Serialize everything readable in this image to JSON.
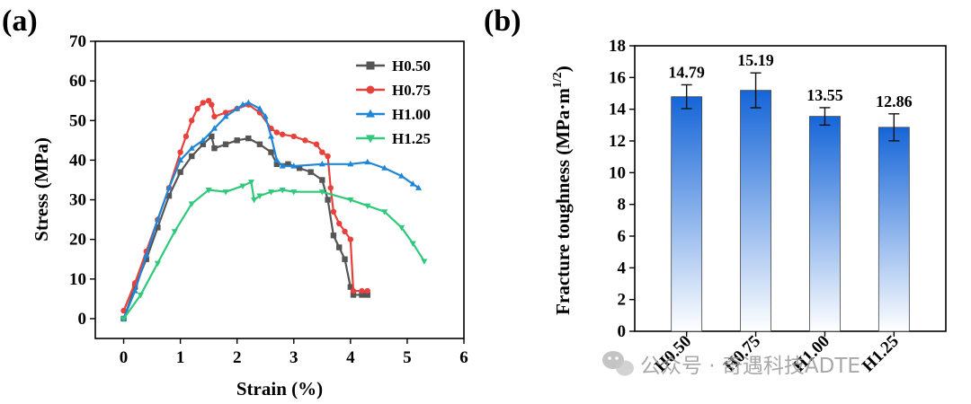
{
  "chart_data": [
    {
      "panel_label": "(a)",
      "type": "line",
      "xlabel": "Strain (%)",
      "ylabel": "Stress (MPa)",
      "xlim": [
        -0.5,
        6
      ],
      "ylim": [
        -5,
        70
      ],
      "xticks": [
        0,
        1,
        2,
        3,
        4,
        5,
        6
      ],
      "yticks": [
        0,
        10,
        20,
        30,
        40,
        50,
        60,
        70
      ],
      "legend_position": "top-right",
      "series": [
        {
          "name": "H0.50",
          "color": "#555555",
          "marker": "square",
          "x": [
            0,
            0.2,
            0.4,
            0.6,
            0.8,
            1.0,
            1.2,
            1.4,
            1.55,
            1.6,
            1.8,
            2.0,
            2.2,
            2.4,
            2.6,
            2.7,
            2.9,
            3.1,
            3.3,
            3.5,
            3.6,
            3.7,
            3.8,
            3.9,
            4.0,
            4.05,
            4.2,
            4.3
          ],
          "y": [
            0,
            8,
            15,
            23,
            31,
            37,
            41,
            44,
            46,
            43,
            44,
            45,
            45.5,
            44,
            42,
            39,
            39,
            38,
            37,
            35,
            30,
            21,
            18,
            15,
            8,
            6,
            6,
            6
          ]
        },
        {
          "name": "H0.75",
          "color": "#e8403a",
          "marker": "circle",
          "x": [
            0,
            0.2,
            0.4,
            0.6,
            0.8,
            1.0,
            1.1,
            1.2,
            1.3,
            1.4,
            1.5,
            1.55,
            1.6,
            1.8,
            2.0,
            2.2,
            2.4,
            2.6,
            2.7,
            2.8,
            3.0,
            3.2,
            3.4,
            3.5,
            3.6,
            3.65,
            3.7,
            3.8,
            3.9,
            4.0,
            4.05,
            4.2,
            4.3
          ],
          "y": [
            2,
            9,
            17,
            25,
            33,
            42,
            46,
            50,
            53,
            54.5,
            55,
            54,
            51,
            52,
            53,
            54,
            52,
            48,
            47,
            46.5,
            46,
            45,
            44,
            42,
            41,
            33,
            27,
            24,
            22,
            20,
            7,
            7,
            7
          ]
        },
        {
          "name": "H1.00",
          "color": "#1f86d6",
          "marker": "triangle",
          "x": [
            0,
            0.2,
            0.4,
            0.6,
            0.8,
            1.0,
            1.2,
            1.4,
            1.6,
            1.8,
            2.0,
            2.1,
            2.2,
            2.4,
            2.5,
            2.6,
            2.7,
            2.8,
            3.0,
            3.5,
            4.0,
            4.3,
            4.6,
            4.9,
            5.1,
            5.2
          ],
          "y": [
            0,
            7,
            16,
            25,
            33,
            40,
            43,
            45,
            48,
            51,
            53,
            54,
            54.5,
            53,
            51,
            46,
            40,
            38.5,
            38.5,
            39,
            39,
            39.5,
            38,
            36,
            34,
            33
          ]
        },
        {
          "name": "H1.25",
          "color": "#2ec97a",
          "marker": "triangle-down",
          "x": [
            0,
            0.3,
            0.6,
            0.9,
            1.2,
            1.5,
            1.8,
            2.1,
            2.25,
            2.3,
            2.4,
            2.6,
            2.8,
            3.0,
            3.5,
            4.0,
            4.3,
            4.6,
            4.9,
            5.1,
            5.3
          ],
          "y": [
            0,
            6,
            14,
            22,
            29,
            32.5,
            32,
            33.5,
            34.5,
            30,
            31,
            32,
            32.5,
            32,
            32,
            30,
            28.5,
            27,
            23,
            19,
            14.5
          ]
        }
      ]
    },
    {
      "panel_label": "(b)",
      "type": "bar",
      "xlabel": "",
      "ylabel": "Fracture toughness (MPa·m",
      "ylabel_sup": "1/2",
      "ylabel_close": ")",
      "categories": [
        "H0.50",
        "H0.75",
        "H1.00",
        "H1.25"
      ],
      "values": [
        14.79,
        15.19,
        13.55,
        12.86
      ],
      "value_labels": [
        "14.79",
        "15.19",
        "13.55",
        "12.86"
      ],
      "errors": [
        0.75,
        1.1,
        0.55,
        0.85
      ],
      "ylim": [
        0,
        18
      ],
      "yticks": [
        0,
        2,
        4,
        6,
        8,
        10,
        12,
        14,
        16,
        18
      ],
      "bar_color_top": "#1565d8",
      "bar_color_bottom": "#ffffff"
    }
  ],
  "watermark": {
    "icon": "wechat-icon",
    "text": "公众号 · 奇遇科技ADTE"
  }
}
